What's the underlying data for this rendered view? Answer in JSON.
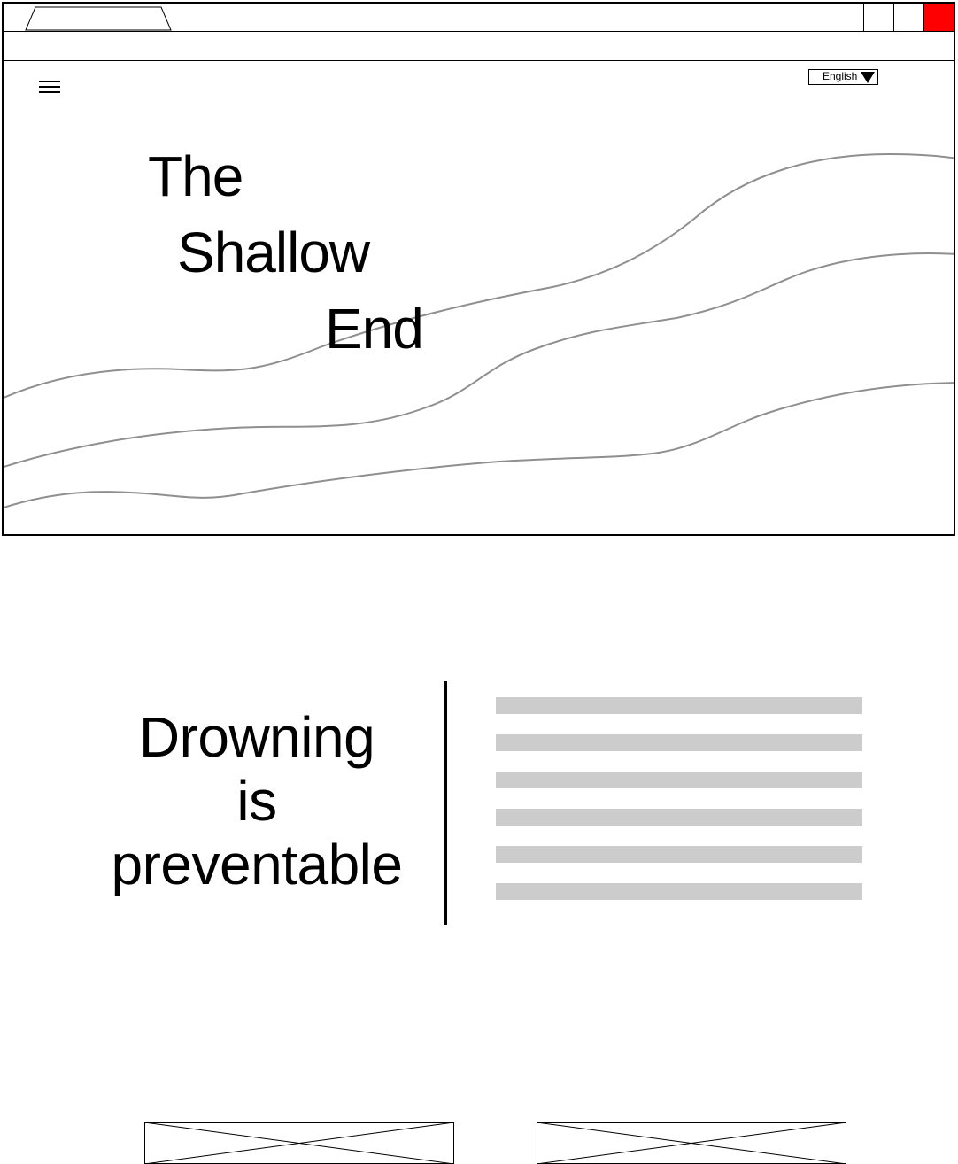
{
  "browser": {
    "tab_title": "",
    "address": "",
    "window_controls": [
      "minimize",
      "maximize",
      "close"
    ],
    "close_color": "#ff0000"
  },
  "header": {
    "menu_icon": "hamburger-icon",
    "language": {
      "selected": "English",
      "icon": "triangle-down-icon"
    }
  },
  "hero": {
    "title_lines": [
      "The",
      "Shallow",
      "End"
    ]
  },
  "intro": {
    "headline_lines": [
      "Drowning",
      "is",
      "preventable"
    ],
    "placeholder_line_count": 6
  },
  "placeholders": {
    "images": [
      "image-placeholder",
      "image-placeholder"
    ]
  }
}
